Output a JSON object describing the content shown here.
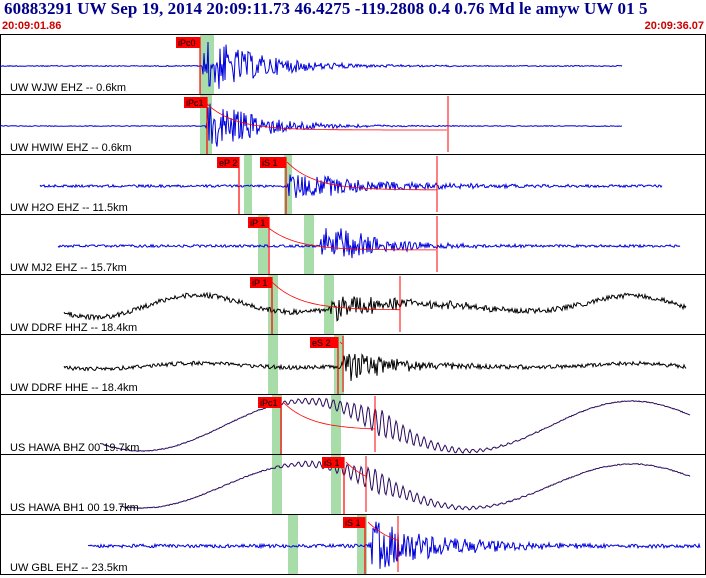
{
  "header": {
    "title": "60883291 UW Sep 19, 2014 20:09:11.73   46.4275 -119.2808  0.4 0.76 Md le amyw UW 01   5",
    "start_time": "20:09:01.86",
    "end_time": "20:09:36.07"
  },
  "colors": {
    "trace_blue": "#0000dd",
    "trace_black": "#000000",
    "trace_purple": "#2a0a5e",
    "pick_red": "#ff0000",
    "window_green": "#a8dca8",
    "frame": "#000000"
  },
  "traces": [
    {
      "label": "UW WJW EHZ -- 0.6km",
      "pick": "iPc0"
    },
    {
      "label": "UW HWIW EHZ -- 0.6km",
      "pick": "iPc1"
    },
    {
      "label": "UW H2O EHZ -- 11.5km",
      "pick": "eP 2",
      "pick2": "iS 1"
    },
    {
      "label": "UW MJ2 EHZ -- 15.7km",
      "pick": "iP 1"
    },
    {
      "label": "UW DDRF HHZ -- 18.4km",
      "pick": "iP 1"
    },
    {
      "label": "UW DDRF HHE -- 18.4km",
      "pick": "eS 2"
    },
    {
      "label": "US HAWA BHZ 00 19.7km",
      "pick": "iPc1"
    },
    {
      "label": "US HAWA BH1 00 19.7km",
      "pick": "iS 1"
    },
    {
      "label": "UW GBL EHZ -- 23.5km",
      "pick": "iS 1"
    }
  ]
}
